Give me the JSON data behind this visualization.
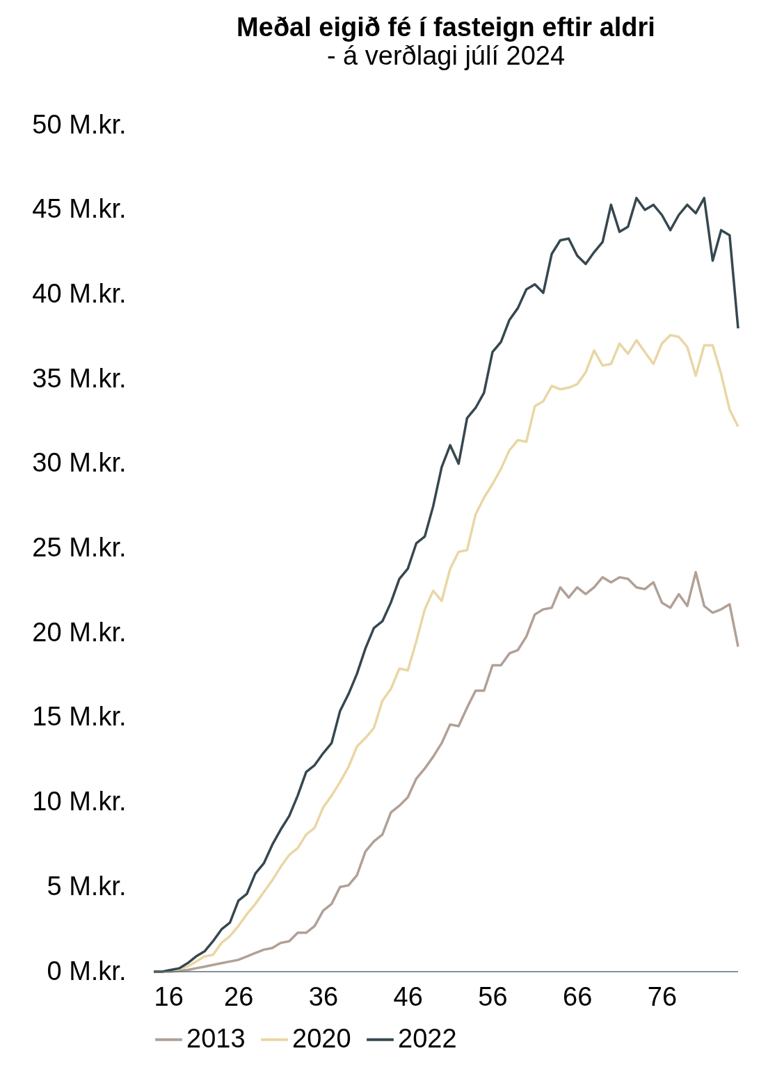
{
  "chart_data": {
    "type": "line",
    "title": "Meðal eigið fé í fasteign eftir aldri",
    "subtitle": "- á verðlagi júlí 2024",
    "x": [
      16,
      17,
      18,
      19,
      20,
      21,
      22,
      23,
      24,
      25,
      26,
      27,
      28,
      29,
      30,
      31,
      32,
      33,
      34,
      35,
      36,
      37,
      38,
      39,
      40,
      41,
      42,
      43,
      44,
      45,
      46,
      47,
      48,
      49,
      50,
      51,
      52,
      53,
      54,
      55,
      56,
      57,
      58,
      59,
      60,
      61,
      62,
      63,
      64,
      65,
      66,
      67,
      68,
      69,
      70,
      71,
      72,
      73,
      74,
      75,
      76,
      77,
      78,
      79,
      80,
      81,
      82,
      83,
      84,
      85
    ],
    "xlim": [
      16,
      85
    ],
    "xticks": [
      16,
      26,
      36,
      46,
      56,
      66,
      76
    ],
    "ylim": [
      0,
      50
    ],
    "yticks": [
      {
        "value": 0,
        "label": "0 M.kr."
      },
      {
        "value": 5,
        "label": "5 M.kr."
      },
      {
        "value": 10,
        "label": "10 M.kr."
      },
      {
        "value": 15,
        "label": "15 M.kr."
      },
      {
        "value": 20,
        "label": "20 M.kr."
      },
      {
        "value": 25,
        "label": "25 M.kr."
      },
      {
        "value": 30,
        "label": "30 M.kr."
      },
      {
        "value": 35,
        "label": "35 M.kr."
      },
      {
        "value": 40,
        "label": "40 M.kr."
      },
      {
        "value": 45,
        "label": "45 M.kr."
      },
      {
        "value": 50,
        "label": "50 M.kr."
      }
    ],
    "grid": false,
    "legend": "bottom",
    "marker": "none",
    "line_style": "solid",
    "series": [
      {
        "name": "2013",
        "color": "#b1a096",
        "values": [
          0,
          0,
          0,
          0.05,
          0.1,
          0.2,
          0.3,
          0.4,
          0.5,
          0.6,
          0.7,
          0.9,
          1.1,
          1.3,
          1.4,
          1.7,
          1.8,
          2.3,
          2.3,
          2.7,
          3.6,
          4.0,
          5.0,
          5.1,
          5.7,
          7.1,
          7.7,
          8.1,
          9.4,
          9.8,
          10.3,
          11.4,
          12.0,
          12.7,
          13.5,
          14.6,
          14.5,
          15.6,
          16.6,
          16.6,
          18.1,
          18.1,
          18.8,
          19.0,
          19.8,
          21.1,
          21.4,
          21.5,
          22.7,
          22.1,
          22.7,
          22.3,
          22.7,
          23.3,
          23.0,
          23.3,
          23.2,
          22.7,
          22.6,
          23.0,
          21.8,
          21.5,
          22.3,
          21.6,
          23.6,
          21.6,
          21.2,
          21.4,
          21.7,
          19.2
        ]
      },
      {
        "name": "2020",
        "color": "#ead6a4",
        "values": [
          0,
          0,
          0.05,
          0.15,
          0.3,
          0.6,
          0.9,
          1.0,
          1.7,
          2.1,
          2.7,
          3.4,
          4.0,
          4.7,
          5.4,
          6.2,
          6.9,
          7.3,
          8.1,
          8.5,
          9.7,
          10.4,
          11.2,
          12.1,
          13.3,
          13.8,
          14.4,
          16.0,
          16.7,
          17.9,
          17.8,
          19.5,
          21.4,
          22.5,
          21.9,
          23.8,
          24.8,
          24.9,
          27.0,
          28.0,
          28.8,
          29.7,
          30.8,
          31.4,
          31.3,
          33.4,
          33.7,
          34.6,
          34.4,
          34.5,
          34.7,
          35.4,
          36.7,
          35.8,
          35.9,
          37.1,
          36.5,
          37.3,
          36.6,
          35.9,
          37.1,
          37.6,
          37.5,
          36.9,
          35.2,
          37.0,
          37.0,
          35.3,
          33.2,
          32.2
        ]
      },
      {
        "name": "2022",
        "color": "#36474f",
        "values": [
          0,
          0,
          0.1,
          0.2,
          0.5,
          0.9,
          1.2,
          1.8,
          2.5,
          2.9,
          4.2,
          4.6,
          5.8,
          6.4,
          7.5,
          8.4,
          9.2,
          10.4,
          11.8,
          12.2,
          12.9,
          13.5,
          15.4,
          16.4,
          17.6,
          19.1,
          20.3,
          20.7,
          21.8,
          23.2,
          23.8,
          25.3,
          25.7,
          27.5,
          29.8,
          31.1,
          30.0,
          32.7,
          33.3,
          34.2,
          36.6,
          37.2,
          38.5,
          39.2,
          40.3,
          40.6,
          40.1,
          42.4,
          43.2,
          43.3,
          42.3,
          41.8,
          42.5,
          43.1,
          45.3,
          43.7,
          44.0,
          45.7,
          45.0,
          45.3,
          44.7,
          43.8,
          44.7,
          45.3,
          44.8,
          45.7,
          42.0,
          43.8,
          43.5,
          38.0
        ]
      }
    ]
  }
}
